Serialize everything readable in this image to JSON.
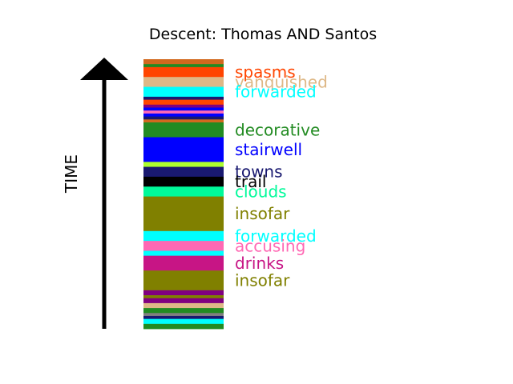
{
  "chart_data": {
    "type": "bar",
    "title": "Descent: Thomas AND Santos",
    "ylabel": "TIME",
    "axis_direction": "up",
    "grid": false,
    "segments": [
      {
        "color": "#d2691e",
        "thickness": 1.0
      },
      {
        "color": "#228b22",
        "thickness": 0.6
      },
      {
        "color": "#ff4500",
        "thickness": 2.0,
        "label": "spasms"
      },
      {
        "color": "#deb887",
        "thickness": 2.0,
        "label": "vanquished"
      },
      {
        "color": "#00ffff",
        "thickness": 2.0,
        "label": "forwarded"
      },
      {
        "color": "#191970",
        "thickness": 0.6
      },
      {
        "color": "#ff4500",
        "thickness": 1.0
      },
      {
        "color": "#800080",
        "thickness": 0.6
      },
      {
        "color": "#0000ff",
        "thickness": 0.6
      },
      {
        "color": "#ff69b4",
        "thickness": 0.6
      },
      {
        "color": "#0000ff",
        "thickness": 0.6
      },
      {
        "color": "#191970",
        "thickness": 0.6
      },
      {
        "color": "#d2691e",
        "thickness": 0.6
      },
      {
        "color": "#228b22",
        "thickness": 3.0,
        "label": "decorative"
      },
      {
        "color": "#0000ff",
        "thickness": 5.0,
        "label": "stairwell"
      },
      {
        "color": "#adff2f",
        "thickness": 1.0
      },
      {
        "color": "#191970",
        "thickness": 2.0,
        "label": "towns"
      },
      {
        "color": "#000000",
        "thickness": 2.0,
        "label": "trail"
      },
      {
        "color": "#00fa9a",
        "thickness": 2.0,
        "label": "clouds"
      },
      {
        "color": "#808000",
        "thickness": 7.0,
        "label": "insofar"
      },
      {
        "color": "#00ffff",
        "thickness": 2.0,
        "label": "forwarded"
      },
      {
        "color": "#ff69b4",
        "thickness": 2.0,
        "label": "accusing"
      },
      {
        "color": "#00ffff",
        "thickness": 1.0
      },
      {
        "color": "#c71585",
        "thickness": 3.0,
        "label": "drinks"
      },
      {
        "color": "#808000",
        "thickness": 4.0,
        "label": "insofar"
      },
      {
        "color": "#800080",
        "thickness": 1.0
      },
      {
        "color": "#808000",
        "thickness": 0.6
      },
      {
        "color": "#800080",
        "thickness": 1.0
      },
      {
        "color": "#deb887",
        "thickness": 1.0
      },
      {
        "color": "#228b22",
        "thickness": 1.0
      },
      {
        "color": "#808080",
        "thickness": 0.6
      },
      {
        "color": "#191970",
        "thickness": 0.6
      },
      {
        "color": "#00ffff",
        "thickness": 1.0
      },
      {
        "color": "#228b22",
        "thickness": 1.0
      }
    ]
  }
}
